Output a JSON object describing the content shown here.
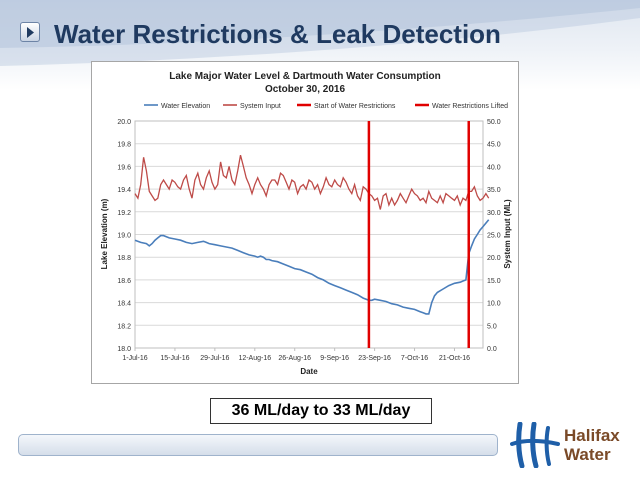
{
  "slide": {
    "title": "Water Restrictions & Leak Detection",
    "caption": "36 ML/day to 33 ML/day",
    "logo_line1": "Halifax",
    "logo_line2": "Water",
    "colors": {
      "title": "#1f3a60",
      "logo_brown": "#7a4a28",
      "logo_blue": "#1f5fa8"
    },
    "icons": {
      "nav_button": "play-triangle-icon",
      "logo_mark": "halifax-water-logo-icon"
    }
  },
  "chart_data": {
    "type": "line",
    "title": "Lake Major Water Level & Dartmouth Water Consumption",
    "subtitle": "October 30, 2016",
    "xlabel": "Date",
    "ylabel": "Lake Elevation (m)",
    "y2label": "System Input (ML)",
    "x_tick_labels": [
      "1-Jul-16",
      "15-Jul-16",
      "29-Jul-16",
      "12-Aug-16",
      "26-Aug-16",
      "9-Sep-16",
      "23-Sep-16",
      "7-Oct-16",
      "21-Oct-16"
    ],
    "x_tick_days": [
      0,
      14,
      28,
      42,
      56,
      70,
      84,
      98,
      112
    ],
    "xlim_days": [
      0,
      122
    ],
    "ylim": [
      18.0,
      20.0
    ],
    "y_ticks": [
      "18.0",
      "18.2",
      "18.4",
      "18.6",
      "18.8",
      "19.0",
      "19.2",
      "19.4",
      "19.6",
      "19.8",
      "20.0"
    ],
    "y2lim": [
      0,
      50
    ],
    "y2_ticks": [
      "0.0",
      "5.0",
      "10.0",
      "15.0",
      "20.0",
      "25.0",
      "30.0",
      "35.0",
      "40.0",
      "45.0",
      "50.0"
    ],
    "grid": true,
    "legend_position": "top",
    "legend": [
      {
        "label": "Water Elevation",
        "color": "#4a7ebb"
      },
      {
        "label": "System Input",
        "color": "#be4b48"
      },
      {
        "label": "Start of Water Restrictions",
        "color": "#e00000"
      },
      {
        "label": "Water Restrictions Lifted",
        "color": "#e00000"
      }
    ],
    "water_elevation_m": [
      [
        0,
        18.95
      ],
      [
        2,
        18.93
      ],
      [
        4,
        18.92
      ],
      [
        5,
        18.9
      ],
      [
        6,
        18.92
      ],
      [
        7,
        18.95
      ],
      [
        8,
        18.97
      ],
      [
        9,
        18.99
      ],
      [
        10,
        18.99
      ],
      [
        11,
        18.98
      ],
      [
        12,
        18.97
      ],
      [
        14,
        18.96
      ],
      [
        16,
        18.95
      ],
      [
        18,
        18.93
      ],
      [
        20,
        18.92
      ],
      [
        22,
        18.93
      ],
      [
        24,
        18.94
      ],
      [
        25,
        18.93
      ],
      [
        26,
        18.92
      ],
      [
        28,
        18.91
      ],
      [
        30,
        18.9
      ],
      [
        32,
        18.89
      ],
      [
        34,
        18.88
      ],
      [
        36,
        18.86
      ],
      [
        38,
        18.84
      ],
      [
        40,
        18.82
      ],
      [
        42,
        18.81
      ],
      [
        43,
        18.8
      ],
      [
        44,
        18.81
      ],
      [
        45,
        18.8
      ],
      [
        46,
        18.78
      ],
      [
        47,
        18.78
      ],
      [
        48,
        18.77
      ],
      [
        50,
        18.76
      ],
      [
        52,
        18.74
      ],
      [
        54,
        18.72
      ],
      [
        56,
        18.7
      ],
      [
        58,
        18.69
      ],
      [
        60,
        18.67
      ],
      [
        62,
        18.65
      ],
      [
        64,
        18.62
      ],
      [
        66,
        18.6
      ],
      [
        68,
        18.57
      ],
      [
        70,
        18.55
      ],
      [
        72,
        18.53
      ],
      [
        74,
        18.51
      ],
      [
        76,
        18.49
      ],
      [
        78,
        18.47
      ],
      [
        80,
        18.44
      ],
      [
        82,
        18.42
      ],
      [
        83,
        18.42
      ],
      [
        84,
        18.43
      ],
      [
        86,
        18.42
      ],
      [
        88,
        18.41
      ],
      [
        90,
        18.39
      ],
      [
        92,
        18.38
      ],
      [
        94,
        18.36
      ],
      [
        96,
        18.35
      ],
      [
        98,
        18.34
      ],
      [
        100,
        18.32
      ],
      [
        101,
        18.31
      ],
      [
        102,
        18.3
      ],
      [
        103,
        18.3
      ],
      [
        104,
        18.4
      ],
      [
        105,
        18.46
      ],
      [
        106,
        18.49
      ],
      [
        108,
        18.52
      ],
      [
        110,
        18.55
      ],
      [
        112,
        18.57
      ],
      [
        114,
        18.58
      ],
      [
        115,
        18.59
      ],
      [
        116,
        18.6
      ],
      [
        117,
        18.83
      ],
      [
        118,
        18.9
      ],
      [
        119,
        18.96
      ],
      [
        120,
        19.0
      ],
      [
        121,
        19.04
      ],
      [
        122,
        19.07
      ],
      [
        123,
        19.1
      ],
      [
        124,
        19.13
      ]
    ],
    "system_input_ml": [
      [
        0,
        34.0
      ],
      [
        1,
        33.0
      ],
      [
        2,
        36.0
      ],
      [
        3,
        42.0
      ],
      [
        4,
        39.0
      ],
      [
        5,
        34.5
      ],
      [
        6,
        33.5
      ],
      [
        7,
        32.5
      ],
      [
        8,
        33.0
      ],
      [
        9,
        36.0
      ],
      [
        10,
        37.0
      ],
      [
        11,
        36.0
      ],
      [
        12,
        35.0
      ],
      [
        13,
        37.0
      ],
      [
        14,
        36.5
      ],
      [
        15,
        35.5
      ],
      [
        16,
        35.0
      ],
      [
        17,
        37.0
      ],
      [
        18,
        38.0
      ],
      [
        19,
        35.0
      ],
      [
        20,
        33.0
      ],
      [
        21,
        37.0
      ],
      [
        22,
        38.5
      ],
      [
        23,
        36.0
      ],
      [
        24,
        35.0
      ],
      [
        25,
        37.5
      ],
      [
        26,
        39.0
      ],
      [
        27,
        36.5
      ],
      [
        28,
        35.0
      ],
      [
        29,
        36.0
      ],
      [
        30,
        41.0
      ],
      [
        31,
        38.0
      ],
      [
        32,
        37.5
      ],
      [
        33,
        40.0
      ],
      [
        34,
        37.0
      ],
      [
        35,
        36.0
      ],
      [
        36,
        39.0
      ],
      [
        37,
        42.5
      ],
      [
        38,
        40.0
      ],
      [
        39,
        37.5
      ],
      [
        40,
        36.0
      ],
      [
        41,
        34.0
      ],
      [
        42,
        36.0
      ],
      [
        43,
        37.5
      ],
      [
        44,
        36.0
      ],
      [
        45,
        35.0
      ],
      [
        46,
        33.5
      ],
      [
        47,
        36.0
      ],
      [
        48,
        37.0
      ],
      [
        49,
        37.0
      ],
      [
        50,
        36.0
      ],
      [
        51,
        38.5
      ],
      [
        52,
        38.0
      ],
      [
        53,
        36.5
      ],
      [
        54,
        35.0
      ],
      [
        55,
        37.0
      ],
      [
        56,
        36.5
      ],
      [
        57,
        34.0
      ],
      [
        58,
        35.5
      ],
      [
        59,
        36.0
      ],
      [
        60,
        35.0
      ],
      [
        61,
        37.0
      ],
      [
        62,
        36.5
      ],
      [
        63,
        35.0
      ],
      [
        64,
        36.0
      ],
      [
        65,
        34.0
      ],
      [
        66,
        35.5
      ],
      [
        67,
        37.5
      ],
      [
        68,
        36.0
      ],
      [
        69,
        35.5
      ],
      [
        70,
        37.0
      ],
      [
        71,
        36.0
      ],
      [
        72,
        35.5
      ],
      [
        73,
        37.5
      ],
      [
        74,
        36.5
      ],
      [
        75,
        35.0
      ],
      [
        76,
        34.0
      ],
      [
        77,
        36.0
      ],
      [
        78,
        33.5
      ],
      [
        79,
        32.5
      ],
      [
        80,
        35.5
      ],
      [
        81,
        35.0
      ],
      [
        82,
        34.0
      ],
      [
        83,
        33.5
      ],
      [
        84,
        32.5
      ],
      [
        85,
        33.0
      ],
      [
        86,
        30.5
      ],
      [
        87,
        33.5
      ],
      [
        88,
        34.0
      ],
      [
        89,
        31.5
      ],
      [
        90,
        33.0
      ],
      [
        91,
        31.5
      ],
      [
        92,
        32.5
      ],
      [
        93,
        34.0
      ],
      [
        94,
        33.0
      ],
      [
        95,
        32.0
      ],
      [
        96,
        33.5
      ],
      [
        97,
        35.0
      ],
      [
        98,
        34.0
      ],
      [
        99,
        33.5
      ],
      [
        100,
        32.5
      ],
      [
        101,
        33.0
      ],
      [
        102,
        32.0
      ],
      [
        103,
        34.5
      ],
      [
        104,
        33.0
      ],
      [
        105,
        32.5
      ],
      [
        106,
        32.0
      ],
      [
        107,
        33.5
      ],
      [
        108,
        32.0
      ],
      [
        109,
        34.0
      ],
      [
        110,
        33.5
      ],
      [
        111,
        33.0
      ],
      [
        112,
        32.5
      ],
      [
        113,
        33.5
      ],
      [
        114,
        31.5
      ],
      [
        115,
        33.0
      ],
      [
        116,
        32.5
      ],
      [
        117,
        34.5
      ],
      [
        118,
        34.5
      ],
      [
        119,
        35.5
      ],
      [
        120,
        33.5
      ],
      [
        121,
        32.5
      ],
      [
        122,
        33.0
      ],
      [
        123,
        34.0
      ],
      [
        124,
        33.0
      ]
    ],
    "start_of_restrictions_day": 82,
    "restrictions_lifted_day": 117
  }
}
